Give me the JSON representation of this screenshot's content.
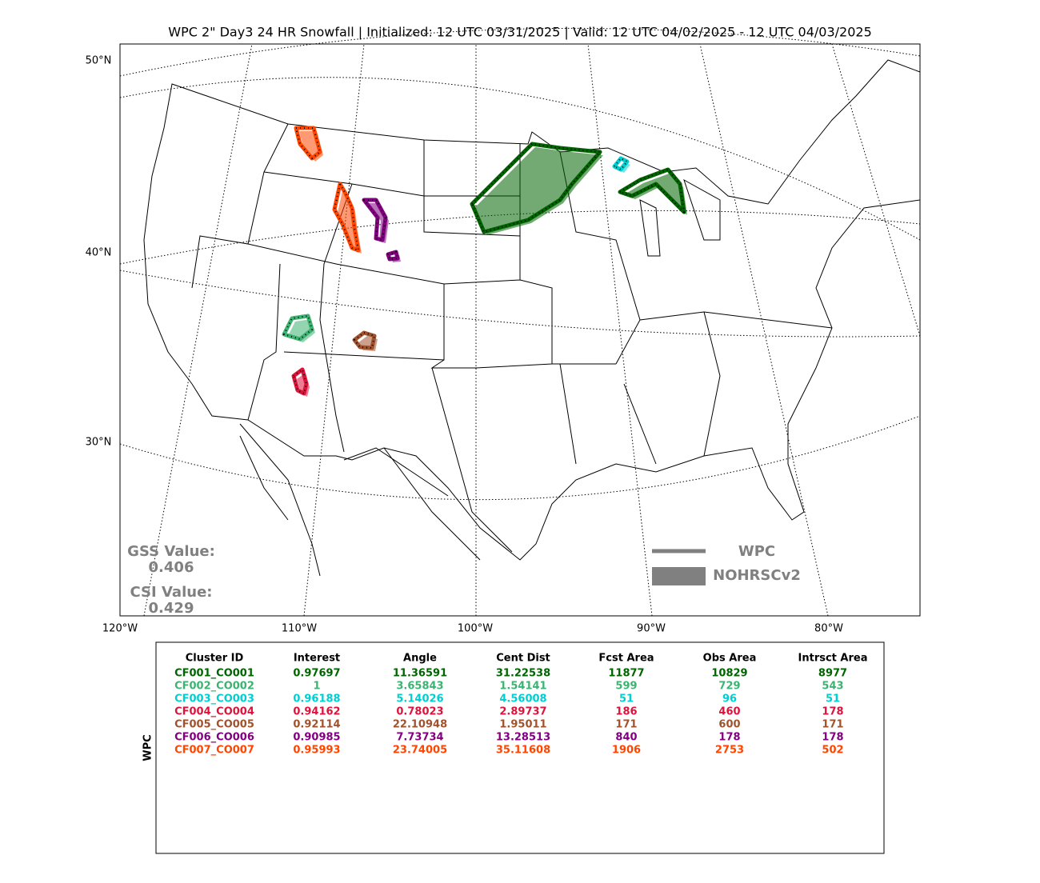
{
  "title": "WPC 2\" Day3 24 HR Snowfall | Initialized: 12 UTC 03/31/2025 | Valid: 12 UTC 04/02/2025 - 12 UTC 04/03/2025",
  "map": {
    "lat_labels": [
      "50°N",
      "40°N",
      "30°N"
    ],
    "lon_labels": [
      "120°W",
      "110°W",
      "100°W",
      "90°W",
      "80°W"
    ],
    "legend": {
      "line": "WPC",
      "area": "NOHRSCv2"
    },
    "scores": {
      "gss_label": "GSS Value:",
      "gss": 0.406,
      "csi_label": "CSI Value:",
      "csi": 0.429
    }
  },
  "table": {
    "side_label": "WPC",
    "columns": [
      "Cluster ID",
      "Interest",
      "Angle",
      "Cent Dist",
      "Fcst Area",
      "Obs Area",
      "Intrsct Area"
    ],
    "rows": [
      {
        "color": "#006400",
        "cells": [
          "CF001_CO001",
          0.97697,
          11.36591,
          31.22538,
          11877,
          10829,
          8977
        ]
      },
      {
        "color": "#3cb371",
        "cells": [
          "CF002_CO002",
          1,
          3.65843,
          1.54141,
          599,
          729,
          543
        ]
      },
      {
        "color": "#00ced1",
        "cells": [
          "CF003_CO003",
          0.96188,
          5.14026,
          4.56008,
          51,
          96,
          51
        ]
      },
      {
        "color": "#dc143c",
        "cells": [
          "CF004_CO004",
          0.94162,
          0.78023,
          2.89737,
          186,
          460,
          178
        ]
      },
      {
        "color": "#a0522d",
        "cells": [
          "CF005_CO005",
          0.92114,
          22.10948,
          1.95011,
          171,
          600,
          171
        ]
      },
      {
        "color": "#800080",
        "cells": [
          "CF006_CO006",
          0.90985,
          7.73734,
          13.28513,
          840,
          178,
          178
        ]
      },
      {
        "color": "#ff4500",
        "cells": [
          "CF007_CO007",
          0.95993,
          23.74005,
          35.11608,
          1906,
          2753,
          502
        ]
      }
    ]
  }
}
